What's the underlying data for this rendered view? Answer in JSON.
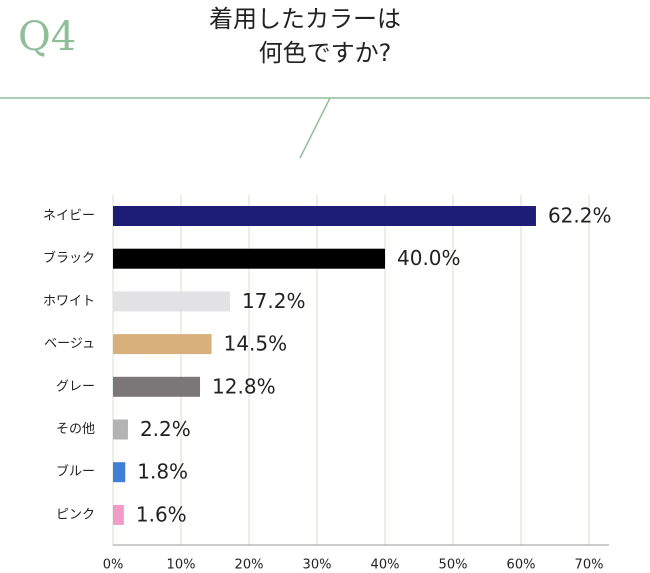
{
  "chart_data": {
    "type": "hbar",
    "question_label": "Q4",
    "title_lines": [
      "着用したカラーは",
      "何色ですか?"
    ],
    "categories": [
      "ネイビー",
      "ブラック",
      "ホワイト",
      "ベージュ",
      "グレー",
      "その他",
      "ブルー",
      "ピンク"
    ],
    "values": [
      62.2,
      40.0,
      17.2,
      14.5,
      12.8,
      2.2,
      1.8,
      1.6
    ],
    "value_labels": [
      "62.2%",
      "40.0%",
      "17.2%",
      "14.5%",
      "12.8%",
      "2.2%",
      "1.8%",
      "1.6%"
    ],
    "colors": [
      "#1d1d78",
      "#000000",
      "#e2e2e4",
      "#d8b07c",
      "#7b7778",
      "#b3b3b3",
      "#3f7fd6",
      "#f29ac8"
    ],
    "xlim": [
      0,
      70
    ],
    "xticks": [
      {
        "value": 0,
        "label": "0%"
      },
      {
        "value": 10,
        "label": "10%"
      },
      {
        "value": 20,
        "label": "20%"
      },
      {
        "value": 30,
        "label": "30%"
      },
      {
        "value": 40,
        "label": "40%"
      },
      {
        "value": 50,
        "label": "50%"
      },
      {
        "value": 60,
        "label": "60%"
      },
      {
        "value": 70,
        "label": "70%"
      }
    ],
    "grid": true
  }
}
